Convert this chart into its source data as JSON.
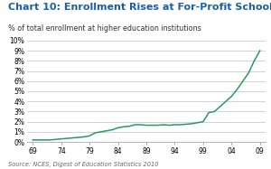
{
  "title": "Chart 10: Enrollment Rises at For-Profit Schools",
  "subtitle": "% of total enrollment at higher education institutions",
  "source": "Source: NCES, Digest of Education Statistics 2010",
  "background_color": "#ffffff",
  "plot_bg_color": "#ffffff",
  "line_color": "#2a9a5a",
  "title_color": "#1a5fa8",
  "subtitle_color": "#333333",
  "source_color": "#666666",
  "grid_color": "#cccccc",
  "years": [
    1969,
    1970,
    1971,
    1972,
    1973,
    1974,
    1975,
    1976,
    1977,
    1978,
    1979,
    1980,
    1981,
    1982,
    1983,
    1984,
    1985,
    1986,
    1987,
    1988,
    1989,
    1990,
    1991,
    1992,
    1993,
    1994,
    1995,
    1996,
    1997,
    1998,
    1999,
    2000,
    2001,
    2002,
    2003,
    2004,
    2005,
    2006,
    2007,
    2008,
    2009
  ],
  "values": [
    0.2,
    0.2,
    0.2,
    0.2,
    0.25,
    0.3,
    0.35,
    0.4,
    0.45,
    0.5,
    0.6,
    0.9,
    1.0,
    1.1,
    1.2,
    1.4,
    1.5,
    1.55,
    1.7,
    1.7,
    1.65,
    1.65,
    1.65,
    1.7,
    1.65,
    1.7,
    1.7,
    1.75,
    1.8,
    1.9,
    2.0,
    2.9,
    3.0,
    3.5,
    4.0,
    4.5,
    5.2,
    6.0,
    6.8,
    8.0,
    9.0
  ],
  "xtick_labels": [
    "69",
    "74",
    "79",
    "84",
    "89",
    "94",
    "99",
    "04",
    "09"
  ],
  "xtick_values": [
    1969,
    1974,
    1979,
    1984,
    1989,
    1994,
    1999,
    2004,
    2009
  ],
  "ytick_values": [
    0,
    1,
    2,
    3,
    4,
    5,
    6,
    7,
    8,
    9,
    10
  ],
  "ytick_labels": [
    "0%",
    "1%",
    "2%",
    "3%",
    "4%",
    "5%",
    "6%",
    "7%",
    "8%",
    "9%",
    "10%"
  ],
  "ylim": [
    0,
    10
  ],
  "xlim": [
    1968,
    2010
  ],
  "title_fontsize": 8.0,
  "subtitle_fontsize": 5.8,
  "tick_fontsize": 5.5,
  "source_fontsize": 4.8
}
